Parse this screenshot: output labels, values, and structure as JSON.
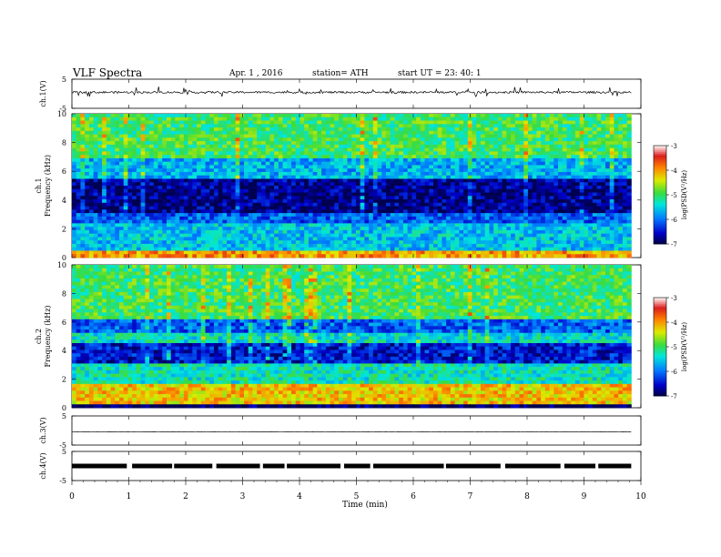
{
  "header": {
    "title": "VLF  Spectra",
    "date": "Apr. 1  , 2016",
    "station": "station= ATH",
    "start": "start  UT  =    23: 40: 1"
  },
  "chart_data": [
    {
      "type": "line",
      "name": "ch1-waveform",
      "ylabel": "ch.1(V)",
      "ylim": [
        -5,
        5
      ],
      "yticks": [
        5,
        -5
      ],
      "xlim": [
        0,
        10
      ],
      "baseline": 0.5,
      "noise": 0.7
    },
    {
      "type": "heatmap",
      "name": "ch1-spectrogram",
      "ylabel": "ch.1\nFrequency  (kHz)",
      "ylim": [
        0,
        10
      ],
      "yticks": [
        0,
        2,
        4,
        6,
        8,
        10
      ],
      "xlim": [
        0,
        9.83
      ],
      "colorbar": {
        "label": "log(PSD(V²/Hz)",
        "range": [
          -7,
          -3
        ],
        "ticks": [
          -3,
          -4,
          -5,
          -6,
          -7
        ]
      },
      "bands": [
        {
          "range": [
            0,
            0.5
          ],
          "level": -4.0
        },
        {
          "range": [
            0.5,
            2.5
          ],
          "level": -5.6
        },
        {
          "range": [
            2.5,
            3.2
          ],
          "level": -6.1
        },
        {
          "range": [
            3.2,
            5.5
          ],
          "level": -6.8
        },
        {
          "range": [
            5.5,
            7.0
          ],
          "level": -5.7
        },
        {
          "range": [
            7.0,
            10
          ],
          "level": -5.0
        }
      ]
    },
    {
      "type": "heatmap",
      "name": "ch2-spectrogram",
      "ylabel": "ch.2\nFrequency  (kHz)",
      "ylim": [
        0,
        10
      ],
      "yticks": [
        0,
        2,
        4,
        6,
        8,
        10
      ],
      "xlim": [
        0,
        9.83
      ],
      "colorbar": {
        "label": "log(PSD(V²/Hz)",
        "range": [
          -7,
          -3
        ],
        "ticks": [
          -3,
          -4,
          -5,
          -6,
          -7
        ]
      },
      "bands": [
        {
          "range": [
            0,
            0.3
          ],
          "level": -7.0
        },
        {
          "range": [
            0.3,
            1.6
          ],
          "level": -4.2
        },
        {
          "range": [
            1.6,
            3.0
          ],
          "level": -5.3
        },
        {
          "range": [
            3.0,
            4.6
          ],
          "level": -6.5
        },
        {
          "range": [
            4.6,
            5.3
          ],
          "level": -5.4
        },
        {
          "range": [
            5.3,
            6.3
          ],
          "level": -6.1
        },
        {
          "range": [
            6.3,
            10
          ],
          "level": -5.0
        }
      ]
    },
    {
      "type": "line",
      "name": "ch3-waveform",
      "ylabel": "ch.3(V)",
      "ylim": [
        -5,
        5
      ],
      "yticks": [
        5,
        -5
      ],
      "xlim": [
        0,
        10
      ],
      "baseline": -0.5,
      "noise": 0.05
    },
    {
      "type": "line",
      "name": "ch4-waveform",
      "ylabel": "ch.4(V)",
      "ylim": [
        -5,
        5
      ],
      "yticks": [
        5,
        -5
      ],
      "xlim": [
        0,
        10
      ],
      "baseline": 0,
      "noise": 0.4
    }
  ],
  "xaxis": {
    "label": "Time  (min)",
    "ticks": [
      0,
      1,
      2,
      3,
      4,
      5,
      6,
      7,
      8,
      9,
      10
    ]
  }
}
